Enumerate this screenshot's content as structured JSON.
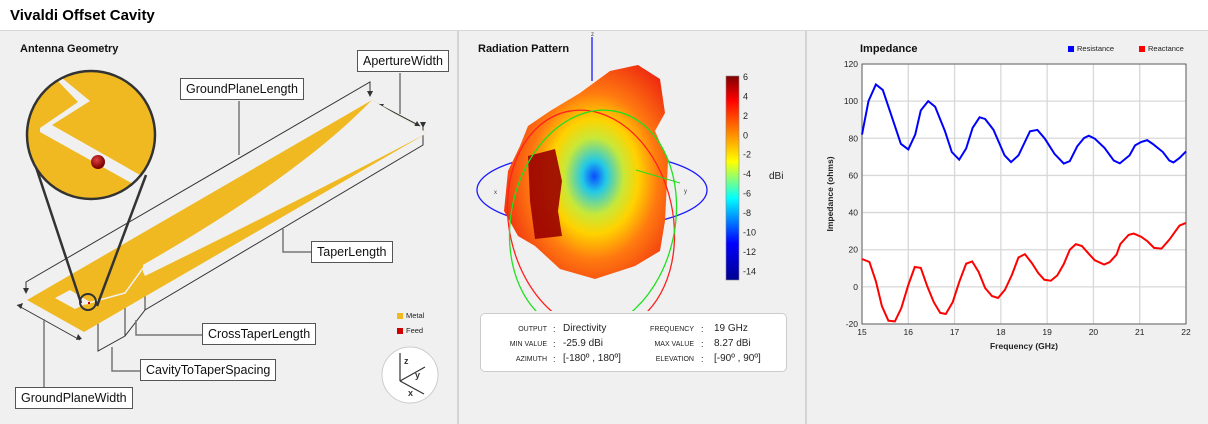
{
  "app_title": "Vivaldi Offset Cavity",
  "geometry": {
    "title": "Antenna Geometry",
    "labels": {
      "aperture_width": "ApertureWidth",
      "ground_plane_length": "GroundPlaneLength",
      "taper_length": "TaperLength",
      "cross_taper_length": "CrossTaperLength",
      "cavity_to_taper_spacing": "CavityToTaperSpacing",
      "ground_plane_width": "GroundPlaneWidth"
    },
    "legend": [
      {
        "label": "Metal",
        "color": "#f0b922"
      },
      {
        "label": "Feed",
        "color": "#cc0000"
      }
    ],
    "axes": {
      "x": "x",
      "y": "y",
      "z": "z"
    }
  },
  "radiation": {
    "title": "Radiation Pattern",
    "axis_labels": {
      "x": "x",
      "y": "y",
      "z": "z"
    },
    "colorbar": {
      "unit": "dBi",
      "ticks": [
        "6",
        "4",
        "2",
        "0",
        "-2",
        "-4",
        "-6",
        "-8",
        "-10",
        "-12",
        "-14"
      ],
      "range": [
        -15,
        6
      ]
    },
    "info": {
      "output_key": "OUTPUT",
      "output_val": "Directivity",
      "min_key": "MIN VALUE",
      "min_val": "-25.9 dBi",
      "azimuth_key": "AZIMUTH",
      "azimuth_val": "[-180º , 180º]",
      "frequency_key": "FREQUENCY",
      "frequency_val": "19 GHz",
      "max_key": "MAX VALUE",
      "max_val": "8.27 dBi",
      "elevation_key": "ELEVATION",
      "elevation_val": "[-90º , 90º]",
      "sep": ":"
    }
  },
  "chart_data": {
    "type": "line",
    "title": "Impedance",
    "xlabel": "Frequency (GHz)",
    "ylabel": "Impedance (ohms)",
    "xlim": [
      15,
      22
    ],
    "ylim": [
      -20,
      120
    ],
    "xticks": [
      "15",
      "16",
      "17",
      "18",
      "19",
      "20",
      "21",
      "22"
    ],
    "yticks": [
      "120",
      "100",
      "80",
      "60",
      "40",
      "20",
      "0",
      "-20"
    ],
    "grid": true,
    "legend_position": "top-right",
    "series": [
      {
        "name": "Resistance",
        "color": "#0000ff",
        "x": [
          15,
          15.14,
          15.3,
          15.45,
          15.84,
          16.0,
          16.15,
          16.27,
          16.43,
          16.58,
          16.79,
          16.94,
          17.1,
          17.25,
          17.39,
          17.54,
          17.66,
          17.84,
          18.08,
          18.22,
          18.38,
          18.63,
          18.79,
          18.95,
          19.16,
          19.36,
          19.49,
          19.65,
          19.8,
          19.9,
          20.03,
          20.24,
          20.44,
          20.57,
          20.78,
          20.9,
          21.03,
          21.16,
          21.28,
          21.5,
          21.64,
          21.73,
          21.86,
          22
        ],
        "y": [
          82,
          100,
          109,
          106,
          77,
          74,
          82,
          95,
          100,
          97,
          84,
          72.6,
          68.5,
          74.5,
          85.6,
          91.3,
          90.4,
          84.6,
          70.8,
          67.2,
          70.8,
          83.8,
          84.5,
          79.8,
          71.6,
          66.4,
          67.7,
          75.7,
          80.2,
          81.4,
          79.8,
          74.8,
          68,
          66.5,
          70.8,
          76.2,
          78,
          79,
          77,
          72.6,
          68,
          67,
          69.4,
          72.9
        ]
      },
      {
        "name": "Reactance",
        "color": "#ff0000",
        "x": [
          15,
          15.16,
          15.3,
          15.43,
          15.57,
          15.71,
          15.85,
          16,
          16.14,
          16.27,
          16.41,
          16.55,
          16.69,
          16.81,
          16.96,
          17.1,
          17.25,
          17.38,
          17.52,
          17.66,
          17.81,
          17.94,
          18.09,
          18.24,
          18.38,
          18.52,
          18.67,
          18.81,
          18.94,
          19.08,
          19.22,
          19.36,
          19.49,
          19.62,
          19.75,
          19.9,
          20.03,
          20.23,
          20.35,
          20.5,
          20.58,
          20.76,
          20.87,
          21.03,
          21.17,
          21.31,
          21.47,
          21.64,
          21.86,
          22
        ],
        "y": [
          15,
          13.4,
          3,
          -10.4,
          -18.2,
          -18.6,
          -11.4,
          1,
          10.7,
          10.2,
          0.3,
          -8.2,
          -14,
          -14.6,
          -8.2,
          2.6,
          12.5,
          13.7,
          8,
          -0.6,
          -5,
          -6,
          -1.5,
          6.5,
          15.8,
          17.6,
          12.8,
          7.4,
          3.8,
          3.3,
          6.2,
          12.3,
          20,
          23,
          22,
          17.8,
          14.3,
          12,
          13.3,
          17.4,
          23,
          28,
          28.7,
          27,
          24.5,
          21,
          20.6,
          25.4,
          33,
          34.4
        ]
      }
    ]
  }
}
